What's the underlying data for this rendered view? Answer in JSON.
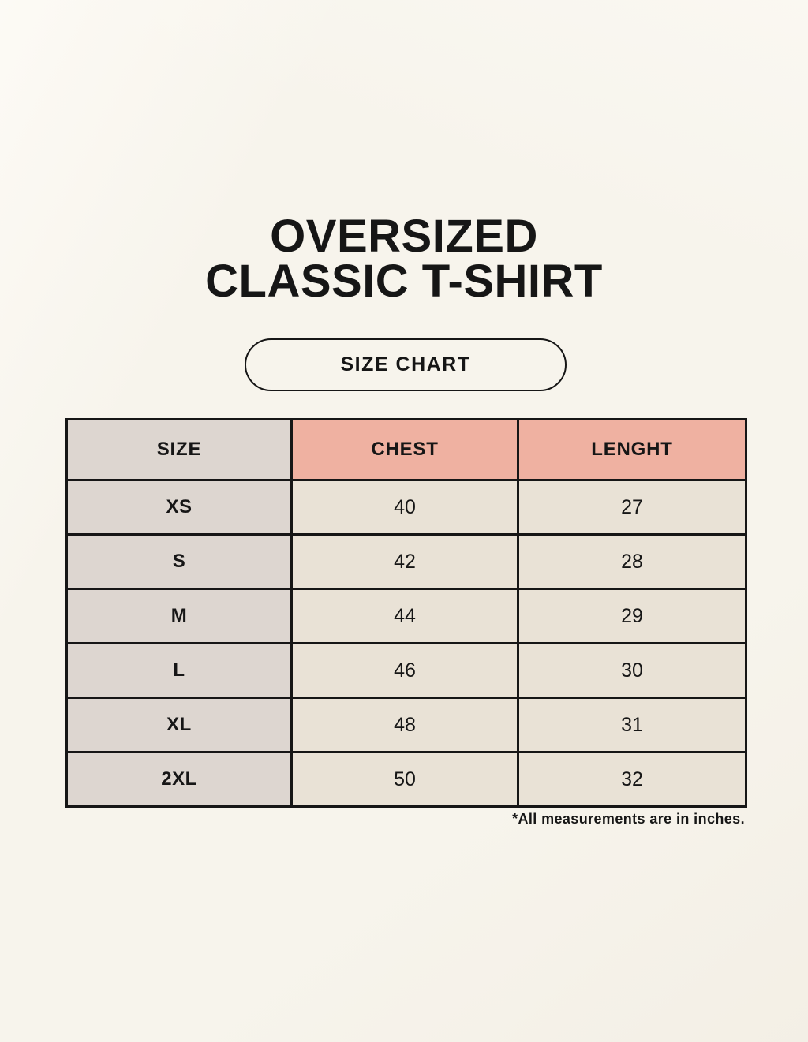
{
  "title": {
    "line1": "OVERSIZED",
    "line2": "CLASSIC T-SHIRT"
  },
  "badge": {
    "label": "SIZE CHART"
  },
  "footnote": "*All measurements are in inches.",
  "chart_data": {
    "type": "table",
    "title": "OVERSIZED CLASSIC T-SHIRT",
    "columns": [
      "SIZE",
      "CHEST",
      "LENGHT"
    ],
    "rows": [
      [
        "XS",
        "40",
        "27"
      ],
      [
        "S",
        "42",
        "28"
      ],
      [
        "M",
        "44",
        "29"
      ],
      [
        "L",
        "46",
        "30"
      ],
      [
        "XL",
        "48",
        "31"
      ],
      [
        "2XL",
        "50",
        "32"
      ]
    ],
    "units_note": "*All measurements are in inches."
  },
  "colors": {
    "page_bg": "#f7f4ec",
    "size_column_bg": "#ddd6d0",
    "header_accent_bg": "#efb1a1",
    "value_cell_bg": "#e9e2d6",
    "border": "#161616",
    "text": "#161616"
  }
}
